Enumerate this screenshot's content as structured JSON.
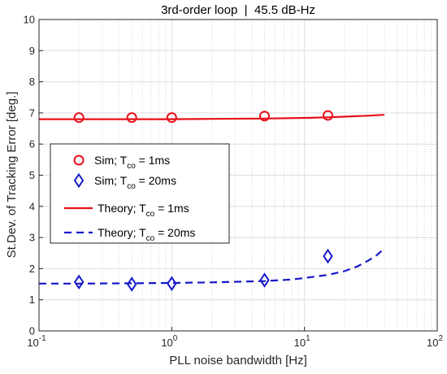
{
  "chart_data": {
    "type": "line",
    "title": "3rd-order loop  |  45.5 dB-Hz",
    "xlabel": "PLL noise bandwidth [Hz]",
    "ylabel": "St.Dev. of Tracking Error [deg.]",
    "xscale": "log",
    "xlim": [
      0.1,
      100
    ],
    "ylim": [
      0,
      10
    ],
    "grid": true,
    "legend_position": "left-middle",
    "x_ticks": [
      {
        "value": 0.1,
        "base": "10",
        "exp": "-1"
      },
      {
        "value": 1,
        "base": "10",
        "exp": "0"
      },
      {
        "value": 10,
        "base": "10",
        "exp": "1"
      },
      {
        "value": 100,
        "base": "10",
        "exp": "2"
      }
    ],
    "y_ticks": [
      {
        "value": 0,
        "label": "0"
      },
      {
        "value": 1,
        "label": "1"
      },
      {
        "value": 2,
        "label": "2"
      },
      {
        "value": 3,
        "label": "3"
      },
      {
        "value": 4,
        "label": "4"
      },
      {
        "value": 5,
        "label": "5"
      },
      {
        "value": 6,
        "label": "6"
      },
      {
        "value": 7,
        "label": "7"
      },
      {
        "value": 8,
        "label": "8"
      },
      {
        "value": 9,
        "label": "9"
      },
      {
        "value": 10,
        "label": "10"
      }
    ],
    "series": [
      {
        "name_pre": "Sim; T",
        "name_sub": "co",
        "name_post": " = 1ms",
        "marker": "circle",
        "style": "marker",
        "color": "#e8101a",
        "x": [
          0.2,
          0.5,
          1,
          5,
          15
        ],
        "y": [
          6.85,
          6.85,
          6.85,
          6.9,
          6.92
        ]
      },
      {
        "name_pre": "Sim;  T",
        "name_sub": "co",
        "name_post": " = 20ms",
        "marker": "diamond",
        "style": "marker",
        "color": "#1518c8",
        "x": [
          0.2,
          0.5,
          1,
          5,
          15
        ],
        "y": [
          1.57,
          1.5,
          1.52,
          1.63,
          2.4
        ]
      },
      {
        "name_pre": "Theory;  T",
        "name_sub": "co",
        "name_post": " = 1ms",
        "style": "solid",
        "color": "#e8101a",
        "x": [
          0.1,
          0.2,
          0.5,
          1,
          2,
          5,
          10,
          15,
          20,
          30,
          40
        ],
        "y": [
          6.8,
          6.8,
          6.8,
          6.8,
          6.81,
          6.82,
          6.84,
          6.86,
          6.88,
          6.91,
          6.94
        ]
      },
      {
        "name_pre": "Theory;  T",
        "name_sub": "co",
        "name_post": " = 20ms",
        "style": "dashed",
        "color": "#1518c8",
        "x": [
          0.1,
          0.2,
          0.5,
          1,
          2,
          5,
          8,
          10,
          15,
          20,
          25,
          30,
          35,
          40
        ],
        "y": [
          1.52,
          1.52,
          1.53,
          1.54,
          1.56,
          1.6,
          1.65,
          1.7,
          1.8,
          1.92,
          2.07,
          2.25,
          2.43,
          2.65
        ]
      }
    ]
  }
}
